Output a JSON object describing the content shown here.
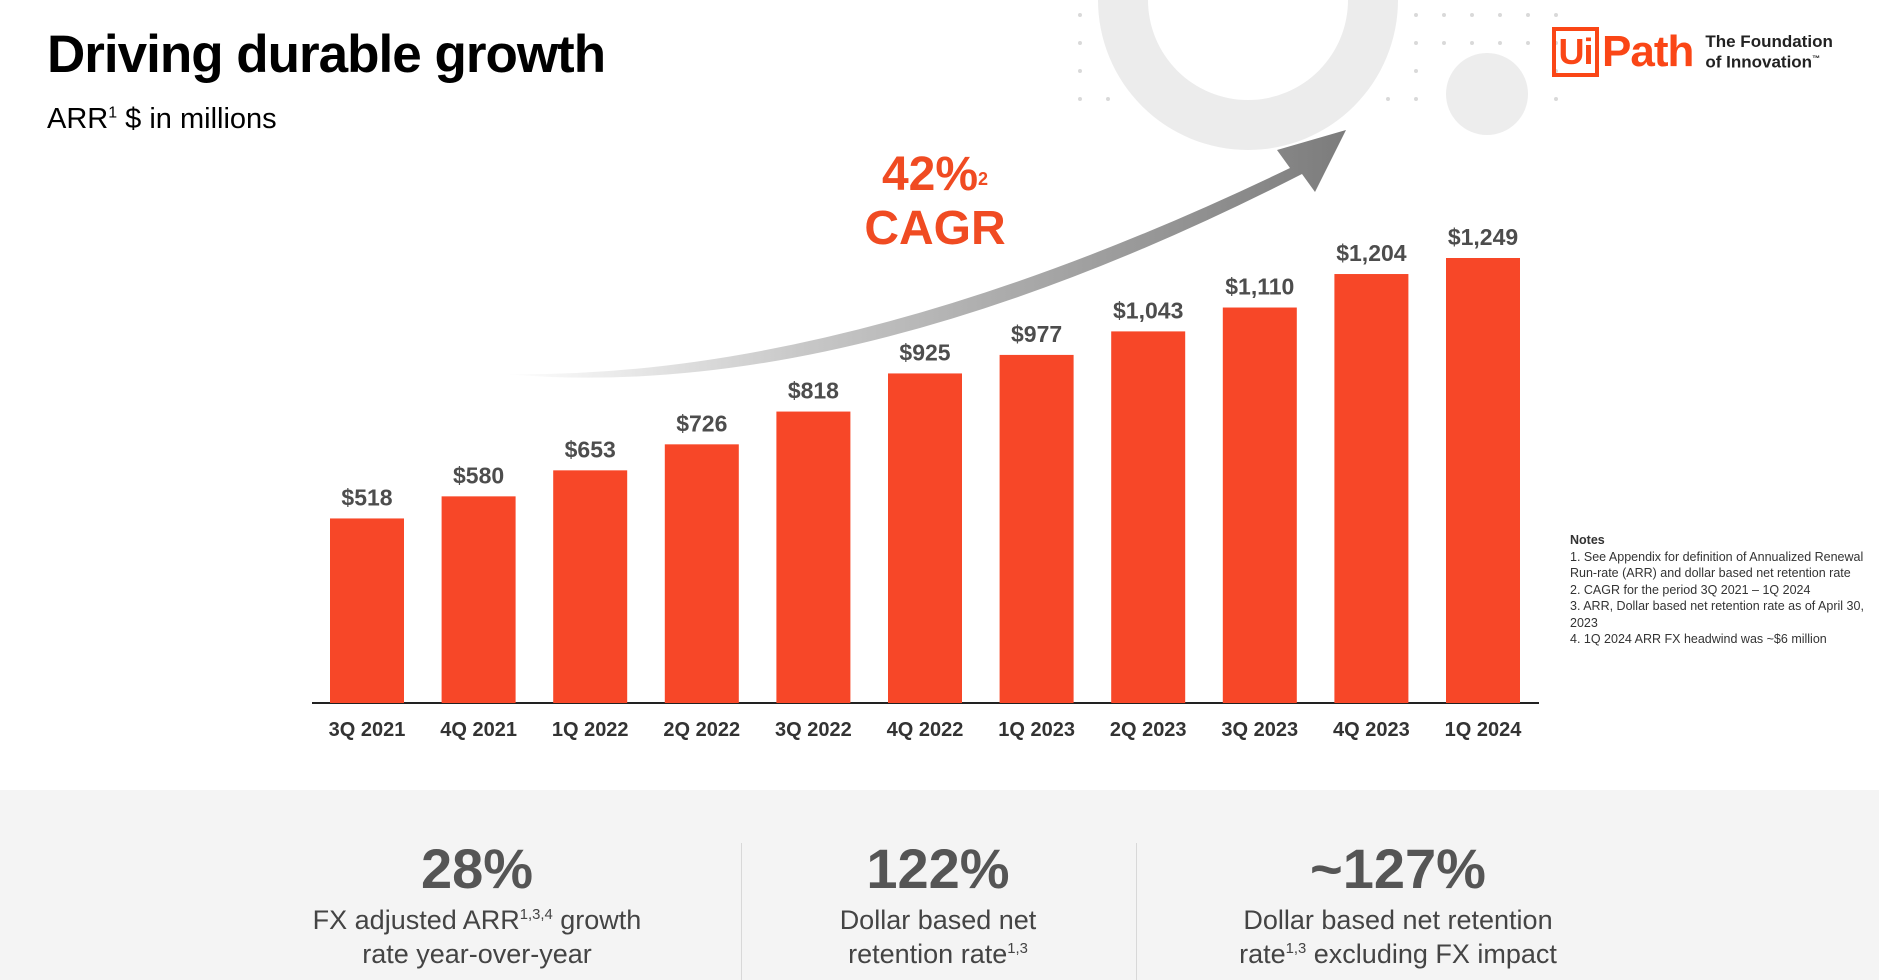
{
  "title": "Driving durable growth",
  "subtitle": {
    "text": "ARR",
    "sup": "1",
    "suffix": " $ in millions"
  },
  "logo": {
    "box": "Ui",
    "word": "Path",
    "tagline1": "The Foundation",
    "tagline2": "of Innovation",
    "tm": "™"
  },
  "colors": {
    "bar": "#f74728",
    "accent": "#fa4616",
    "arrow": "#8a8a8a",
    "band": "#f4f4f4"
  },
  "cagr": {
    "value": "42%",
    "sup": "2",
    "label": "CAGR"
  },
  "chart_data": {
    "type": "bar",
    "categories": [
      "3Q 2021",
      "4Q 2021",
      "1Q 2022",
      "2Q 2022",
      "3Q 2022",
      "4Q 2022",
      "1Q 2023",
      "2Q 2023",
      "3Q 2023",
      "4Q 2023",
      "1Q 2024"
    ],
    "values": [
      518,
      580,
      653,
      726,
      818,
      925,
      977,
      1043,
      1110,
      1204,
      1249
    ],
    "labels": [
      "$518",
      "$580",
      "$653",
      "$726",
      "$818",
      "$925",
      "$977",
      "$1,043",
      "$1,110",
      "$1,204",
      "$1,249"
    ],
    "ylim": [
      0,
      1249
    ],
    "grid": false
  },
  "notes": {
    "title": "Notes",
    "items": [
      "1. See Appendix for definition of Annualized Renewal Run-rate (ARR) and dollar based net retention rate",
      "2. CAGR for the period 3Q 2021 – 1Q 2024",
      "3. ARR, Dollar based net retention rate as of April 30, 2023",
      "4. 1Q 2024 ARR FX headwind was ~$6 million"
    ]
  },
  "stats": [
    {
      "value": "28%",
      "line1_a": "FX adjusted ARR",
      "line1_sup": "1,3,4",
      "line1_b": " growth",
      "line2_a": "rate year-over-year",
      "line2_sup": "",
      "line2_b": ""
    },
    {
      "value": "122%",
      "line1_a": "Dollar based net",
      "line1_sup": "",
      "line1_b": "",
      "line2_a": "retention rate",
      "line2_sup": "1,3",
      "line2_b": ""
    },
    {
      "value": "~127%",
      "line1_a": "Dollar based net retention",
      "line1_sup": "",
      "line1_b": "",
      "line2_a": "rate",
      "line2_sup": "1,3",
      "line2_b": " excluding FX impact"
    }
  ]
}
